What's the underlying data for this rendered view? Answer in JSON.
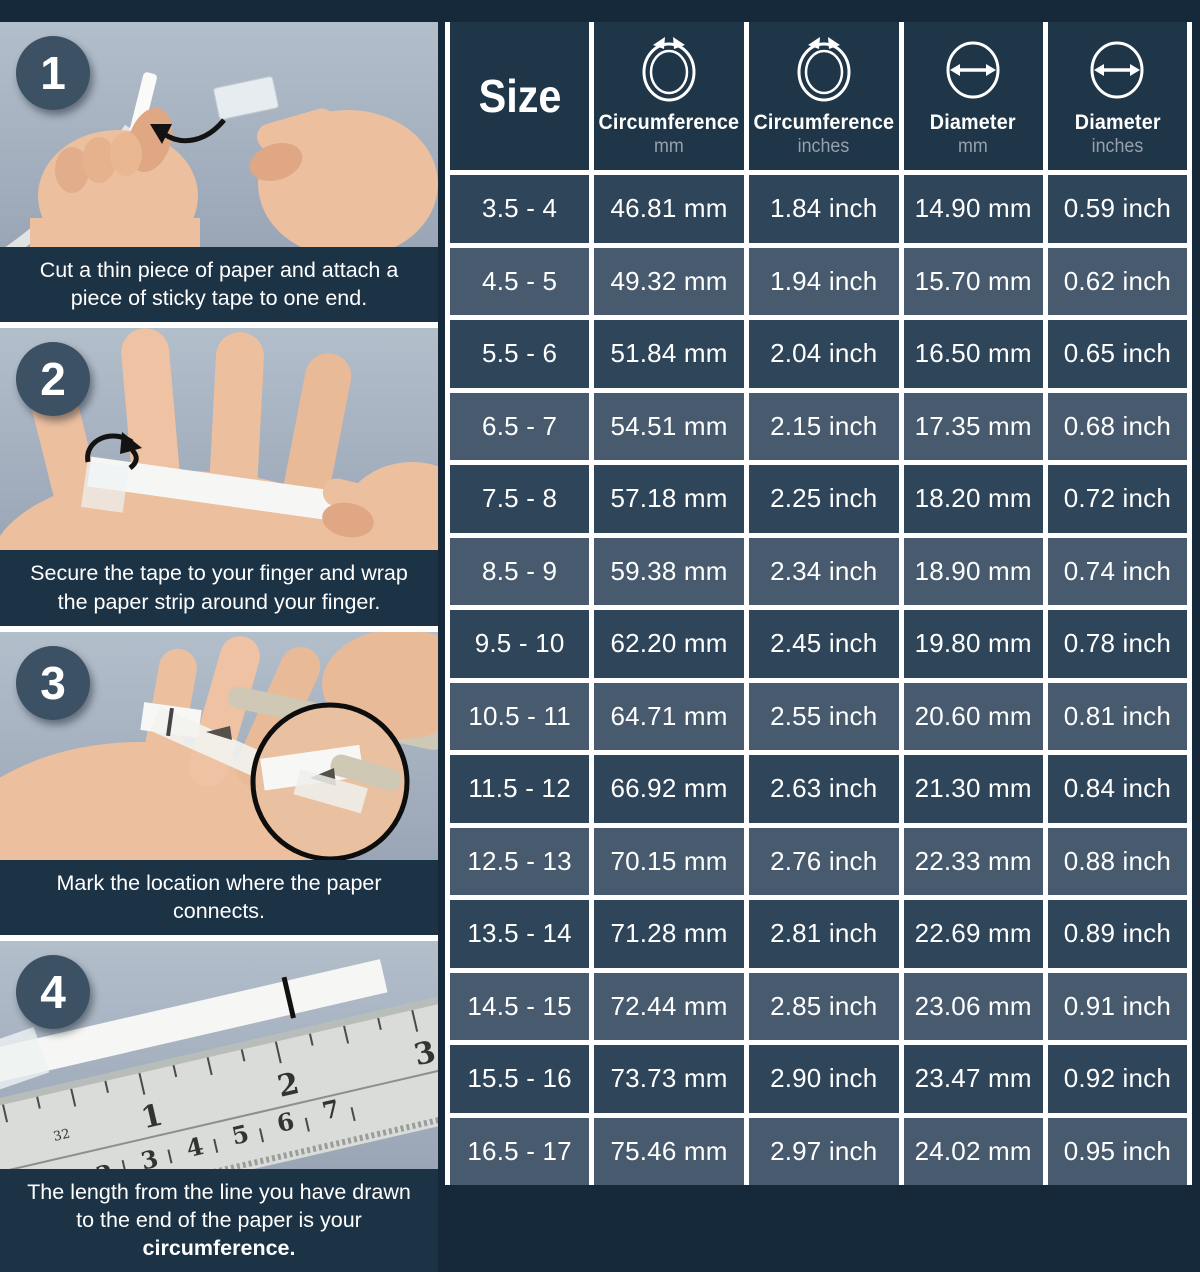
{
  "steps": [
    {
      "number": "1",
      "caption": "Cut a thin piece of paper and attach a piece of sticky tape to one end.",
      "caption_bold": ""
    },
    {
      "number": "2",
      "caption": "Secure the tape to your finger and wrap the paper strip around your finger.",
      "caption_bold": ""
    },
    {
      "number": "3",
      "caption": "Mark the location where the paper connects.",
      "caption_bold": ""
    },
    {
      "number": "4",
      "caption": "The length from the line you have drawn to the end of the paper is your ",
      "caption_bold": "circumference.",
      "ruler_small_label": "32",
      "ruler_top_scale": [
        "1",
        "2",
        "3"
      ],
      "ruler_bottom_scale": [
        "1",
        "2",
        "3",
        "4",
        "5",
        "6",
        "7"
      ]
    }
  ],
  "table": {
    "size_header": "Size",
    "columns": [
      {
        "label": "Circumference",
        "unit": "mm",
        "icon": "circumference-ring-icon"
      },
      {
        "label": "Circumference",
        "unit": "inches",
        "icon": "circumference-ring-icon"
      },
      {
        "label": "Diameter",
        "unit": "mm",
        "icon": "diameter-arrow-icon"
      },
      {
        "label": "Diameter",
        "unit": "inches",
        "icon": "diameter-arrow-icon"
      }
    ],
    "rows": [
      [
        "3.5 - 4",
        "46.81 mm",
        "1.84 inch",
        "14.90 mm",
        "0.59 inch"
      ],
      [
        "4.5 - 5",
        "49.32 mm",
        "1.94 inch",
        "15.70 mm",
        "0.62 inch"
      ],
      [
        "5.5 - 6",
        "51.84 mm",
        "2.04 inch",
        "16.50 mm",
        "0.65 inch"
      ],
      [
        "6.5 - 7",
        "54.51 mm",
        "2.15 inch",
        "17.35 mm",
        "0.68 inch"
      ],
      [
        "7.5 - 8",
        "57.18 mm",
        "2.25 inch",
        "18.20 mm",
        "0.72 inch"
      ],
      [
        "8.5 - 9",
        "59.38 mm",
        "2.34 inch",
        "18.90 mm",
        "0.74 inch"
      ],
      [
        "9.5 - 10",
        "62.20 mm",
        "2.45 inch",
        "19.80 mm",
        "0.78 inch"
      ],
      [
        "10.5 - 11",
        "64.71 mm",
        "2.55 inch",
        "20.60 mm",
        "0.81 inch"
      ],
      [
        "11.5 - 12",
        "66.92 mm",
        "2.63 inch",
        "21.30 mm",
        "0.84 inch"
      ],
      [
        "12.5 - 13",
        "70.15 mm",
        "2.76 inch",
        "22.33 mm",
        "0.88 inch"
      ],
      [
        "13.5 - 14",
        "71.28 mm",
        "2.81 inch",
        "22.69 mm",
        "0.89 inch"
      ],
      [
        "14.5 - 15",
        "72.44 mm",
        "2.85 inch",
        "23.06 mm",
        "0.91 inch"
      ],
      [
        "15.5 - 16",
        "73.73 mm",
        "2.90 inch",
        "23.47 mm",
        "0.92 inch"
      ],
      [
        "16.5 - 17",
        "75.46 mm",
        "2.97 inch",
        "24.02 mm",
        "0.95 inch"
      ]
    ]
  },
  "colors": {
    "page_bg": "#16293b",
    "caption_bg": "#1c3245",
    "header_cell_bg": "#1f3548",
    "row_dark": "#2f455a",
    "row_light": "#475a6e",
    "badge_bg": "#3d5165",
    "photo_bg": "#a9b4c3",
    "unit_text": "#95a1ae",
    "text": "#ffffff"
  }
}
